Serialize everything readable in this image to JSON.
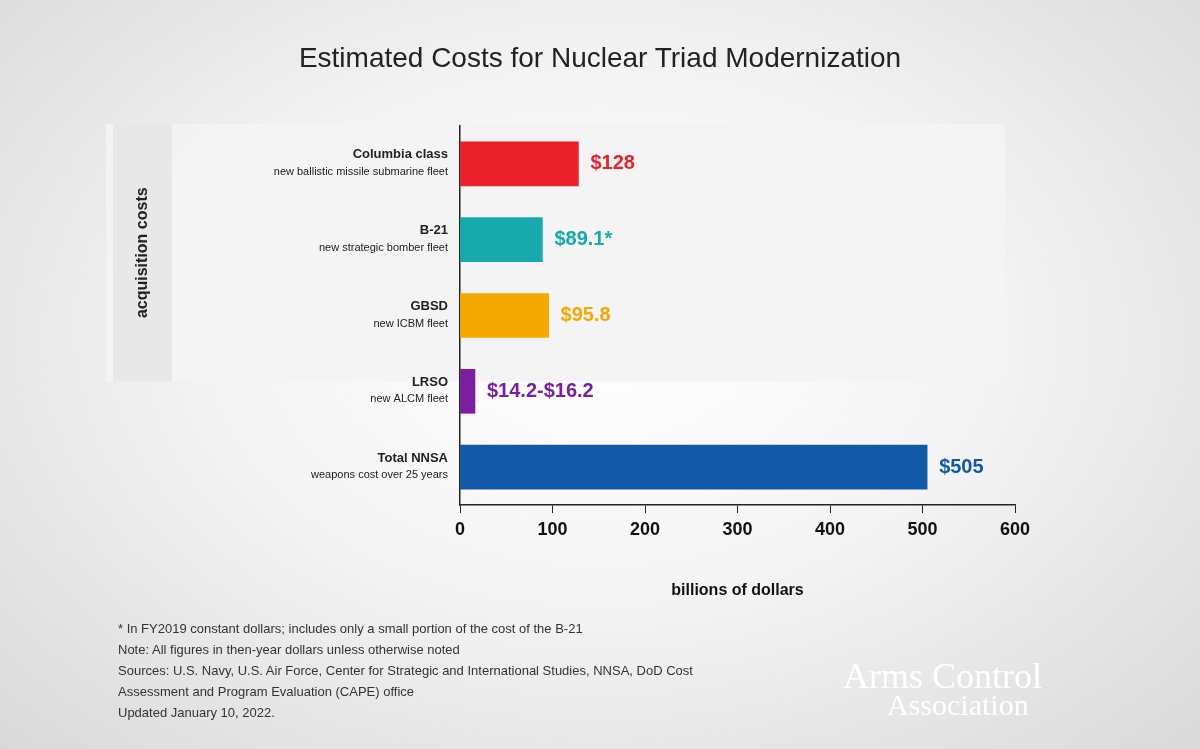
{
  "chart_data": {
    "type": "bar",
    "orientation": "horizontal",
    "title": "Estimated Costs for Nuclear Triad Modernization",
    "categories": [
      [
        "Columbia class",
        "new ballistic missile submarine fleet"
      ],
      [
        "B-21",
        "new strategic bomber fleet"
      ],
      [
        "GBSD",
        "new ICBM fleet"
      ],
      [
        "LRSO",
        "new ALCM fleet"
      ],
      [
        "Total NNSA",
        "weapons cost over 25 years"
      ]
    ],
    "values": [
      128,
      89.1,
      95.8,
      16.2,
      505
    ],
    "value_labels": [
      "$128",
      "$89.1*",
      "$95.8",
      "$14.2-$16.2",
      "$505"
    ],
    "data_labels": true,
    "colors": [
      "#e8212b",
      "#17a9ab",
      "#f5a800",
      "#7a1fa0",
      "#1259a8"
    ],
    "xlabel": "billions of dollars",
    "xlim": [
      0,
      600
    ],
    "xticks": [
      0,
      100,
      200,
      300,
      400,
      500,
      600
    ],
    "grid": false,
    "group_label": {
      "text": "acquisition costs",
      "categories": [
        "Columbia class",
        "B-21",
        "GBSD"
      ]
    },
    "footnotes": [
      "* In FY2019 constant dollars; includes only a small portion of the cost of the B-21",
      "Note: All figures in then-year dollars unless otherwise noted",
      "Sources: U.S. Navy, U.S. Air Force, Center for Strategic and International Studies, NNSA, DoD Cost Assessment and Program Evaluation (CAPE) office",
      "Updated January 10, 2022."
    ],
    "logo": [
      "Arms Control",
      "Association"
    ]
  }
}
